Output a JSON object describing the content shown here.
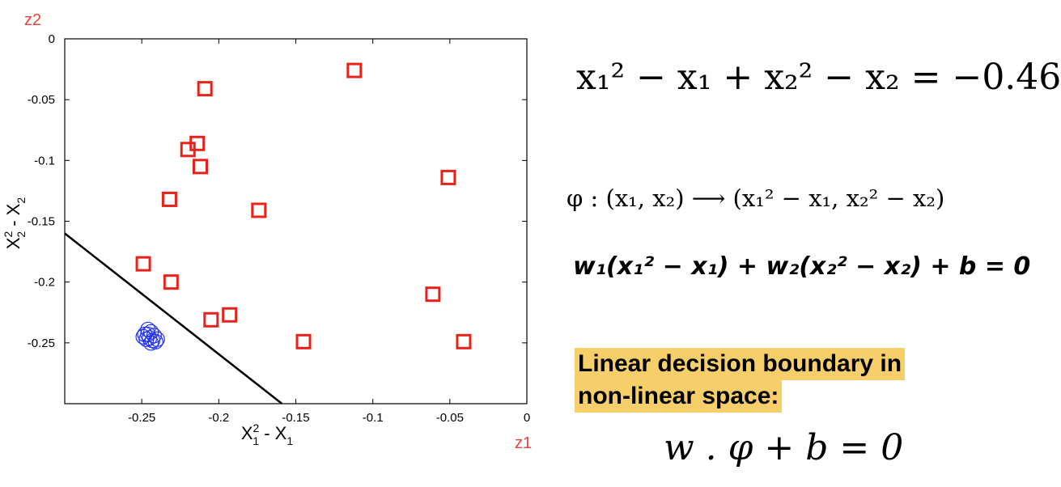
{
  "chart_data": {
    "type": "scatter",
    "xlabel": "X1² - X1",
    "ylabel": "X2² - X2",
    "xlim": [
      -0.3,
      0
    ],
    "ylim": [
      -0.3,
      0
    ],
    "xticks": [
      "-0.25",
      "-0.2",
      "-0.15",
      "-0.1",
      "-0.05",
      "0"
    ],
    "xtick_values": [
      -0.25,
      -0.2,
      -0.15,
      -0.1,
      -0.05,
      0
    ],
    "yticks": [
      "0",
      "-0.05",
      "-0.1",
      "-0.15",
      "-0.2",
      "-0.25"
    ],
    "ytick_values": [
      0,
      -0.05,
      -0.1,
      -0.15,
      -0.2,
      -0.25
    ],
    "series": [
      {
        "marker": "square",
        "color": "#e8221b",
        "points": [
          [
            -0.112,
            -0.026
          ],
          [
            -0.209,
            -0.041
          ],
          [
            -0.214,
            -0.086
          ],
          [
            -0.22,
            -0.091
          ],
          [
            -0.212,
            -0.105
          ],
          [
            -0.051,
            -0.114
          ],
          [
            -0.232,
            -0.132
          ],
          [
            -0.174,
            -0.141
          ],
          [
            -0.249,
            -0.185
          ],
          [
            -0.231,
            -0.2
          ],
          [
            -0.061,
            -0.21
          ],
          [
            -0.193,
            -0.227
          ],
          [
            -0.205,
            -0.231
          ],
          [
            -0.145,
            -0.249
          ],
          [
            -0.041,
            -0.249
          ]
        ]
      },
      {
        "marker": "circle",
        "color": "#2233ff",
        "points": [
          [
            -0.246,
            -0.239
          ],
          [
            -0.244,
            -0.241
          ],
          [
            -0.248,
            -0.243
          ],
          [
            -0.242,
            -0.244
          ],
          [
            -0.245,
            -0.246
          ],
          [
            -0.247,
            -0.247
          ],
          [
            -0.243,
            -0.248
          ],
          [
            -0.24,
            -0.247
          ],
          [
            -0.249,
            -0.245
          ],
          [
            -0.244,
            -0.25
          ],
          [
            -0.241,
            -0.249
          ],
          [
            -0.246,
            -0.243
          ]
        ]
      }
    ],
    "line": {
      "x": [
        -0.3,
        -0.159
      ],
      "y": [
        -0.16,
        -0.3
      ],
      "color": "#000000"
    }
  },
  "labels": {
    "z2": "z2",
    "z1": "z1"
  },
  "equations": {
    "eq1": "x₁² − x₁ + x₂² − x₂ = −0.46",
    "eq2": "φ : (x₁, x₂) ⟶ (x₁² − x₁, x₂² − x₂)",
    "eq3": "w₁(x₁² − x₁) + w₂(x₂² − x₂) + b = 0",
    "eq4": "w . φ + b = 0"
  },
  "highlight": {
    "line1": "Linear decision boundary in",
    "line2": "non-linear space:"
  },
  "colors": {
    "highlight": "#f6cf6b",
    "accent": "#e8423b"
  }
}
